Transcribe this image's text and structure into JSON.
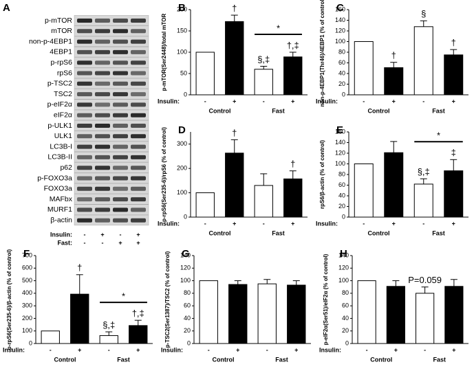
{
  "blot": {
    "panel": "A",
    "labels": [
      "p-mTOR",
      "mTOR",
      "non-p-4EBP1",
      "4EBP1",
      "p-rpS6",
      "rpS6",
      "p-TSC2",
      "TSC2",
      "p-eIF2α",
      "eIF2α",
      "p-ULK1",
      "ULK1",
      "LC3B-I",
      "LC3B-II",
      "p62",
      "p-FOXO3a",
      "FOXO3a",
      "MAFbx",
      "MURF1",
      "β-actin"
    ],
    "insulin_label": "Insulin:",
    "fast_label": "Fast:",
    "insulin": [
      "-",
      "+",
      "-",
      "+"
    ],
    "fast": [
      "-",
      "-",
      "+",
      "+"
    ]
  },
  "chart_data": [
    {
      "type": "bar",
      "panel": "B",
      "y_label": "p-mTOR(Ser2448)/total mTOR",
      "x_row_label": "Insulin:",
      "categories": [
        "-",
        "+",
        "-",
        "+"
      ],
      "groups": [
        "Control",
        "Fast"
      ],
      "values": [
        100,
        172,
        60,
        89
      ],
      "errors": [
        null,
        15,
        7,
        11
      ],
      "colors": [
        "#ffffff",
        "#000000",
        "#ffffff",
        "#000000"
      ],
      "bar_labels": [
        null,
        "†",
        "§,‡",
        "†,‡"
      ],
      "bracket_label": "*",
      "ylim": [
        0,
        200
      ],
      "yticks": [
        0,
        50,
        100,
        150,
        200
      ]
    },
    {
      "type": "bar",
      "panel": "C",
      "y_label": "non-p-4EBP1(Thr46)/4EBP1 (% of control)",
      "x_row_label": "Insulin:",
      "categories": [
        "-",
        "+",
        "-",
        "+"
      ],
      "groups": [
        "Control",
        "Fast"
      ],
      "values": [
        100,
        51,
        128,
        75
      ],
      "errors": [
        null,
        10,
        11,
        10
      ],
      "colors": [
        "#ffffff",
        "#000000",
        "#ffffff",
        "#000000"
      ],
      "bar_labels": [
        null,
        "†",
        "§",
        "†"
      ],
      "ylim": [
        0,
        160
      ],
      "yticks": [
        0,
        20,
        40,
        60,
        80,
        100,
        120,
        140,
        160
      ]
    },
    {
      "type": "bar",
      "panel": "D",
      "y_label": "p-rpS6(Ser235-6)/rpS6 (% of control)",
      "x_row_label": "Insulin:",
      "categories": [
        "-",
        "+",
        "-",
        "+"
      ],
      "groups": [
        "Control",
        "Fast"
      ],
      "values": [
        100,
        263,
        130,
        157
      ],
      "errors": [
        null,
        55,
        48,
        33
      ],
      "colors": [
        "#ffffff",
        "#000000",
        "#ffffff",
        "#000000"
      ],
      "bar_labels": [
        null,
        "†",
        null,
        "†"
      ],
      "ylim": [
        0,
        350
      ],
      "yticks": [
        0,
        100,
        200,
        300
      ]
    },
    {
      "type": "bar",
      "panel": "E",
      "y_label": "rpS6/β-actin (% of control)",
      "x_row_label": "Insulin:",
      "categories": [
        "-",
        "+",
        "-",
        "+"
      ],
      "groups": [
        "Control",
        "Fast"
      ],
      "values": [
        100,
        121,
        62,
        87
      ],
      "errors": [
        null,
        21,
        10,
        21
      ],
      "colors": [
        "#ffffff",
        "#000000",
        "#ffffff",
        "#000000"
      ],
      "bar_labels": [
        null,
        null,
        "§,‡",
        "‡"
      ],
      "bracket_label": "*",
      "ylim": [
        0,
        160
      ],
      "yticks": [
        0,
        20,
        40,
        60,
        80,
        100,
        120,
        140,
        160
      ]
    },
    {
      "type": "bar",
      "panel": "F",
      "y_label": "p-rpS6(Ser235-6)/β-actin (% of control)",
      "x_row_label": "Insulin:",
      "categories": [
        "-",
        "+",
        "-",
        "+"
      ],
      "groups": [
        "Control",
        "Fast"
      ],
      "values": [
        100,
        393,
        63,
        143
      ],
      "errors": [
        null,
        155,
        30,
        42
      ],
      "colors": [
        "#ffffff",
        "#000000",
        "#ffffff",
        "#000000"
      ],
      "bar_labels": [
        null,
        "†",
        "§,‡",
        "†,‡"
      ],
      "bracket_label": "*",
      "ylim": [
        0,
        700
      ],
      "yticks": [
        0,
        100,
        200,
        300,
        400,
        500,
        600,
        700
      ]
    },
    {
      "type": "bar",
      "panel": "G",
      "y_label": "p-TSC2(Ser1387)/TSC2 (% of control)",
      "x_row_label": "Insulin:",
      "categories": [
        "-",
        "+",
        "-",
        "+"
      ],
      "groups": [
        "Control",
        "Fast"
      ],
      "values": [
        100,
        94,
        95,
        93
      ],
      "errors": [
        null,
        6,
        7,
        7
      ],
      "colors": [
        "#ffffff",
        "#000000",
        "#ffffff",
        "#000000"
      ],
      "ylim": [
        0,
        140
      ],
      "yticks": [
        0,
        20,
        40,
        60,
        80,
        100,
        120,
        140
      ]
    },
    {
      "type": "bar",
      "panel": "H",
      "y_label": "p-eIF2α(Ser51)/eIF2α (% of control)",
      "x_row_label": "Insulin:",
      "categories": [
        "-",
        "+",
        "-",
        "+"
      ],
      "groups": [
        "Control",
        "Fast"
      ],
      "values": [
        100,
        91,
        80,
        91
      ],
      "errors": [
        null,
        9,
        10,
        11
      ],
      "colors": [
        "#ffffff",
        "#000000",
        "#ffffff",
        "#000000"
      ],
      "bar_labels": [
        null,
        null,
        "P=0.059",
        null
      ],
      "ylim": [
        0,
        140
      ],
      "yticks": [
        0,
        20,
        40,
        60,
        80,
        100,
        120,
        140
      ]
    }
  ]
}
